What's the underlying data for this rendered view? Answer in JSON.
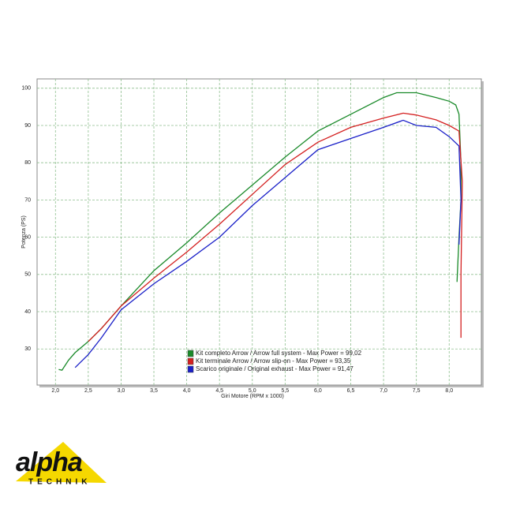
{
  "chart_data": {
    "type": "line",
    "x_label": "Giri Motore (RPM x 1000)",
    "y_label": "Potenza (PS)",
    "xlim": [
      1.72,
      8.49
    ],
    "ylim": [
      20.3,
      102.5
    ],
    "xticks": [
      {
        "value": 2,
        "label": "2,0"
      },
      {
        "value": 2.5,
        "label": "2,5"
      },
      {
        "value": 3,
        "label": "3,0"
      },
      {
        "value": 3.5,
        "label": "3,5"
      },
      {
        "value": 4,
        "label": "4,0"
      },
      {
        "value": 4.5,
        "label": "4,5"
      },
      {
        "value": 5,
        "label": "5,0"
      },
      {
        "value": 5.5,
        "label": "5,5"
      },
      {
        "value": 6,
        "label": "6,0"
      },
      {
        "value": 6.5,
        "label": "6,5"
      },
      {
        "value": 7,
        "label": "7,0"
      },
      {
        "value": 7.5,
        "label": "7,5"
      },
      {
        "value": 8,
        "label": "8,0"
      }
    ],
    "yticks": [
      30,
      40,
      50,
      60,
      70,
      80,
      90,
      100
    ],
    "grid": true,
    "legend": "lower center",
    "series": [
      {
        "name": "Kit completo Arrow / Arrow full system - Max Power = 99,02",
        "color": "#1a8a2a",
        "x": [
          2.05,
          2.1,
          2.2,
          2.3,
          2.5,
          2.7,
          3.0,
          3.5,
          4.0,
          4.5,
          5.0,
          5.5,
          6.0,
          6.5,
          7.0,
          7.2,
          7.5,
          7.8,
          8.0,
          8.1,
          8.15,
          8.18,
          8.18,
          8.15,
          8.12
        ],
        "values": [
          24.5,
          24.3,
          27,
          29,
          32,
          35.5,
          41.5,
          51,
          58.5,
          66.5,
          74,
          81.5,
          88.5,
          93,
          97.5,
          98.8,
          98.8,
          97.5,
          96.5,
          95.5,
          93,
          80,
          70,
          60,
          48
        ]
      },
      {
        "name": "Kit terminale Arrow / Arrow slip-on - Max Power = 93,35",
        "color": "#d42020",
        "x": [
          2.5,
          2.7,
          3.0,
          3.5,
          4.0,
          4.5,
          5.0,
          5.5,
          6.0,
          6.5,
          7.0,
          7.3,
          7.5,
          7.8,
          8.0,
          8.15,
          8.2,
          8.18,
          8.18
        ],
        "values": [
          32,
          35.5,
          41.5,
          49,
          56,
          63.5,
          71.5,
          79.5,
          85.5,
          89.5,
          92,
          93.3,
          92.8,
          91.5,
          90,
          88.5,
          75,
          50,
          33
        ]
      },
      {
        "name": "Scarico originale / Original exhaust - Max Power = 91,47",
        "color": "#1a20c8",
        "x": [
          2.3,
          2.5,
          2.7,
          3.0,
          3.5,
          4.0,
          4.5,
          5.0,
          5.5,
          6.0,
          6.5,
          7.0,
          7.3,
          7.5,
          7.8,
          8.0,
          8.15,
          8.18,
          8.15
        ],
        "values": [
          25,
          28.5,
          33,
          40.5,
          47.5,
          53.5,
          60,
          68.5,
          76,
          83.5,
          86.5,
          89.5,
          91.4,
          90,
          89.5,
          87,
          84.5,
          70,
          58
        ]
      }
    ]
  },
  "logo": {
    "name": "alpha",
    "sub": "TECHNIK"
  }
}
